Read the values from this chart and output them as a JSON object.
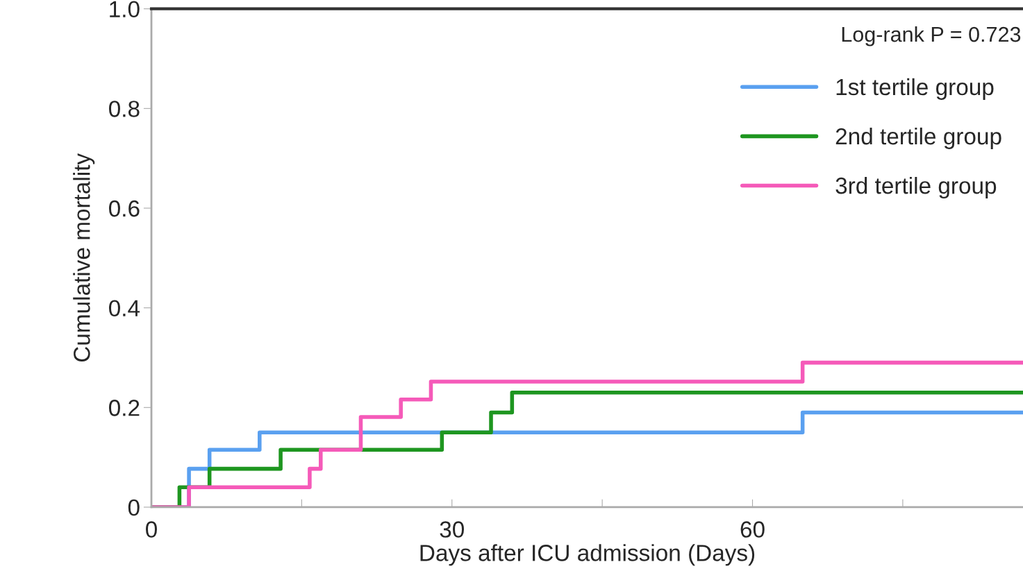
{
  "chart_data": {
    "type": "step",
    "xlabel": "Days after ICU admission (Days)",
    "ylabel": "Cumulative mortality",
    "xlim": [
      0,
      87
    ],
    "xticks": [
      0,
      {
        "value": 15,
        "label": null
      },
      30,
      {
        "value": 45,
        "label": null
      },
      60,
      {
        "value": 75,
        "label": null
      }
    ],
    "ylim": [
      0,
      1.0
    ],
    "yticks": [
      {
        "value": 0,
        "label": "0"
      },
      {
        "value": 0.2,
        "label": "0.2"
      },
      {
        "value": 0.4,
        "label": "0.4"
      },
      {
        "value": 0.6,
        "label": "0.6"
      },
      {
        "value": 0.8,
        "label": "0.8"
      },
      {
        "value": 1.0,
        "label": "1.0"
      }
    ],
    "grid": false,
    "legend": "right",
    "line_style": "solid",
    "marker": "none",
    "annotations": [
      "Log-rank P = 0.723"
    ],
    "series": [
      {
        "name": "1st tertile group",
        "color": "#5aa0f0",
        "x": [
          0,
          3.75,
          5.8,
          10.8,
          65,
          87
        ],
        "values": [
          0,
          0.077,
          0.115,
          0.15,
          0.19,
          0.19
        ]
      },
      {
        "name": "2nd tertile group",
        "color": "#1e9620",
        "x": [
          0,
          2.8,
          5.8,
          12.9,
          29,
          33.9,
          36,
          87
        ],
        "values": [
          0,
          0.04,
          0.077,
          0.115,
          0.15,
          0.19,
          0.23,
          0.23
        ]
      },
      {
        "name": "3rd tertile group",
        "color": "#f55ab9",
        "x": [
          0,
          3.75,
          15.8,
          16.9,
          20.9,
          24.9,
          27.9,
          65,
          87
        ],
        "values": [
          0,
          0.04,
          0.077,
          0.115,
          0.181,
          0.216,
          0.252,
          0.29,
          0.29
        ]
      }
    ]
  }
}
